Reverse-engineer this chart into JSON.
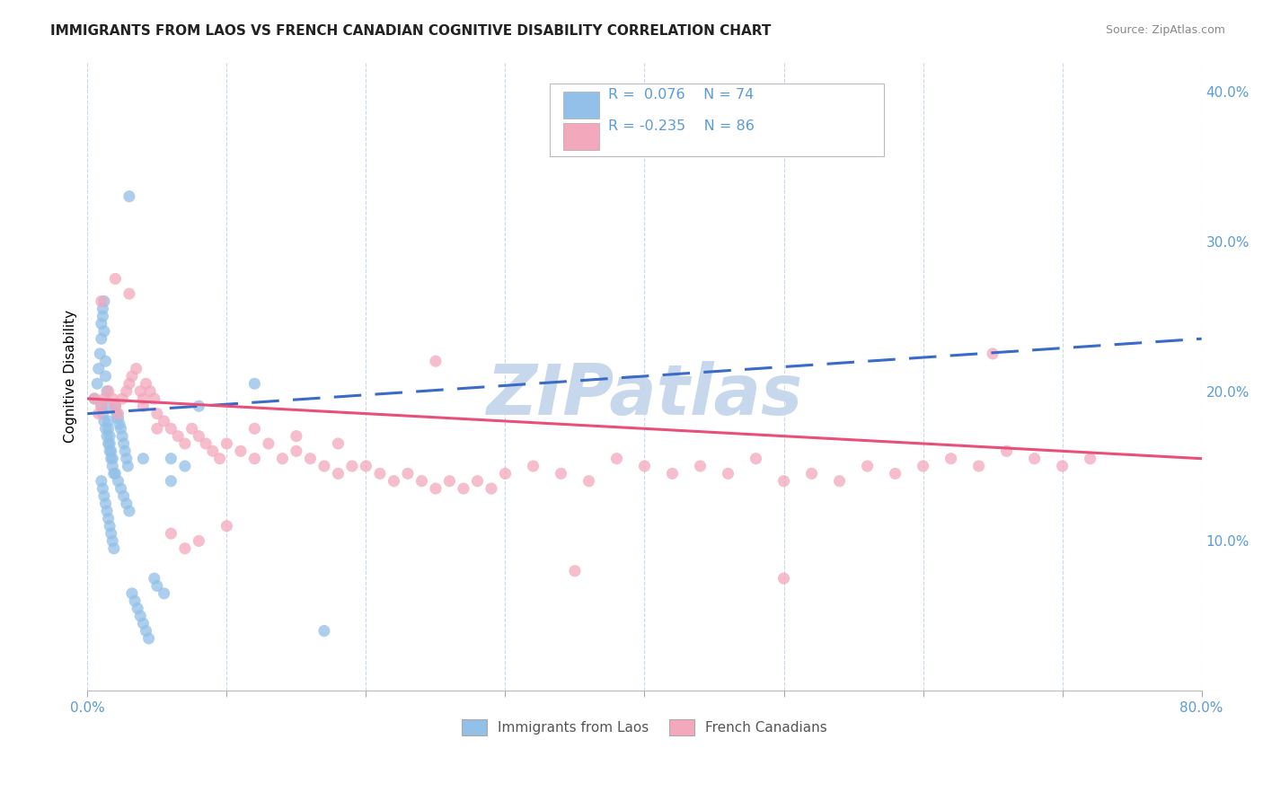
{
  "title": "IMMIGRANTS FROM LAOS VS FRENCH CANADIAN COGNITIVE DISABILITY CORRELATION CHART",
  "source": "Source: ZipAtlas.com",
  "ylabel": "Cognitive Disability",
  "xmin": 0.0,
  "xmax": 0.8,
  "ymin": 0.0,
  "ymax": 0.42,
  "blue_color": "#92C0E8",
  "pink_color": "#F4A8BC",
  "blue_line_color": "#3A6BC8",
  "pink_line_color": "#E8507A",
  "axis_label_color": "#5B9BD5",
  "legend_text_color": "#5B9BD5",
  "legend_r_color": "#333333",
  "watermark": "ZIPatlas",
  "watermark_color": "#C8D8EC",
  "blue_line_start_y": 0.185,
  "blue_line_end_y": 0.235,
  "pink_line_start_y": 0.195,
  "pink_line_end_y": 0.155,
  "blue_scatter_x": [
    0.005,
    0.007,
    0.008,
    0.009,
    0.01,
    0.01,
    0.011,
    0.011,
    0.012,
    0.012,
    0.013,
    0.013,
    0.014,
    0.014,
    0.015,
    0.015,
    0.016,
    0.016,
    0.017,
    0.018,
    0.01,
    0.011,
    0.012,
    0.013,
    0.014,
    0.015,
    0.016,
    0.017,
    0.018,
    0.019,
    0.01,
    0.011,
    0.012,
    0.013,
    0.014,
    0.015,
    0.016,
    0.017,
    0.018,
    0.019,
    0.02,
    0.021,
    0.022,
    0.023,
    0.024,
    0.025,
    0.026,
    0.027,
    0.028,
    0.029,
    0.02,
    0.022,
    0.024,
    0.026,
    0.028,
    0.03,
    0.032,
    0.034,
    0.036,
    0.038,
    0.04,
    0.042,
    0.044,
    0.048,
    0.05,
    0.055,
    0.06,
    0.07,
    0.08,
    0.12,
    0.03,
    0.04,
    0.06,
    0.17
  ],
  "blue_scatter_y": [
    0.195,
    0.205,
    0.215,
    0.225,
    0.235,
    0.245,
    0.25,
    0.255,
    0.26,
    0.24,
    0.22,
    0.21,
    0.2,
    0.19,
    0.18,
    0.175,
    0.17,
    0.165,
    0.16,
    0.155,
    0.19,
    0.185,
    0.18,
    0.175,
    0.17,
    0.165,
    0.16,
    0.155,
    0.15,
    0.145,
    0.14,
    0.135,
    0.13,
    0.125,
    0.12,
    0.115,
    0.11,
    0.105,
    0.1,
    0.095,
    0.19,
    0.185,
    0.182,
    0.178,
    0.175,
    0.17,
    0.165,
    0.16,
    0.155,
    0.15,
    0.145,
    0.14,
    0.135,
    0.13,
    0.125,
    0.12,
    0.065,
    0.06,
    0.055,
    0.05,
    0.045,
    0.04,
    0.035,
    0.075,
    0.07,
    0.065,
    0.155,
    0.15,
    0.19,
    0.205,
    0.33,
    0.155,
    0.14,
    0.04
  ],
  "pink_scatter_x": [
    0.005,
    0.008,
    0.01,
    0.012,
    0.015,
    0.018,
    0.02,
    0.022,
    0.025,
    0.028,
    0.03,
    0.032,
    0.035,
    0.038,
    0.04,
    0.042,
    0.045,
    0.048,
    0.05,
    0.055,
    0.06,
    0.065,
    0.07,
    0.075,
    0.08,
    0.085,
    0.09,
    0.095,
    0.1,
    0.11,
    0.12,
    0.13,
    0.14,
    0.15,
    0.16,
    0.17,
    0.18,
    0.19,
    0.2,
    0.21,
    0.22,
    0.23,
    0.24,
    0.25,
    0.26,
    0.27,
    0.28,
    0.29,
    0.3,
    0.32,
    0.34,
    0.36,
    0.38,
    0.4,
    0.42,
    0.44,
    0.46,
    0.48,
    0.5,
    0.52,
    0.54,
    0.56,
    0.58,
    0.6,
    0.62,
    0.64,
    0.66,
    0.68,
    0.7,
    0.72,
    0.01,
    0.02,
    0.03,
    0.04,
    0.05,
    0.06,
    0.07,
    0.08,
    0.1,
    0.12,
    0.15,
    0.18,
    0.25,
    0.35,
    0.5,
    0.65
  ],
  "pink_scatter_y": [
    0.195,
    0.185,
    0.19,
    0.195,
    0.2,
    0.195,
    0.19,
    0.185,
    0.195,
    0.2,
    0.205,
    0.21,
    0.215,
    0.2,
    0.195,
    0.205,
    0.2,
    0.195,
    0.185,
    0.18,
    0.175,
    0.17,
    0.165,
    0.175,
    0.17,
    0.165,
    0.16,
    0.155,
    0.165,
    0.16,
    0.155,
    0.165,
    0.155,
    0.16,
    0.155,
    0.15,
    0.145,
    0.15,
    0.15,
    0.145,
    0.14,
    0.145,
    0.14,
    0.135,
    0.14,
    0.135,
    0.14,
    0.135,
    0.145,
    0.15,
    0.145,
    0.14,
    0.155,
    0.15,
    0.145,
    0.15,
    0.145,
    0.155,
    0.14,
    0.145,
    0.14,
    0.15,
    0.145,
    0.15,
    0.155,
    0.15,
    0.16,
    0.155,
    0.15,
    0.155,
    0.26,
    0.275,
    0.265,
    0.19,
    0.175,
    0.105,
    0.095,
    0.1,
    0.11,
    0.175,
    0.17,
    0.165,
    0.22,
    0.08,
    0.075,
    0.225
  ]
}
